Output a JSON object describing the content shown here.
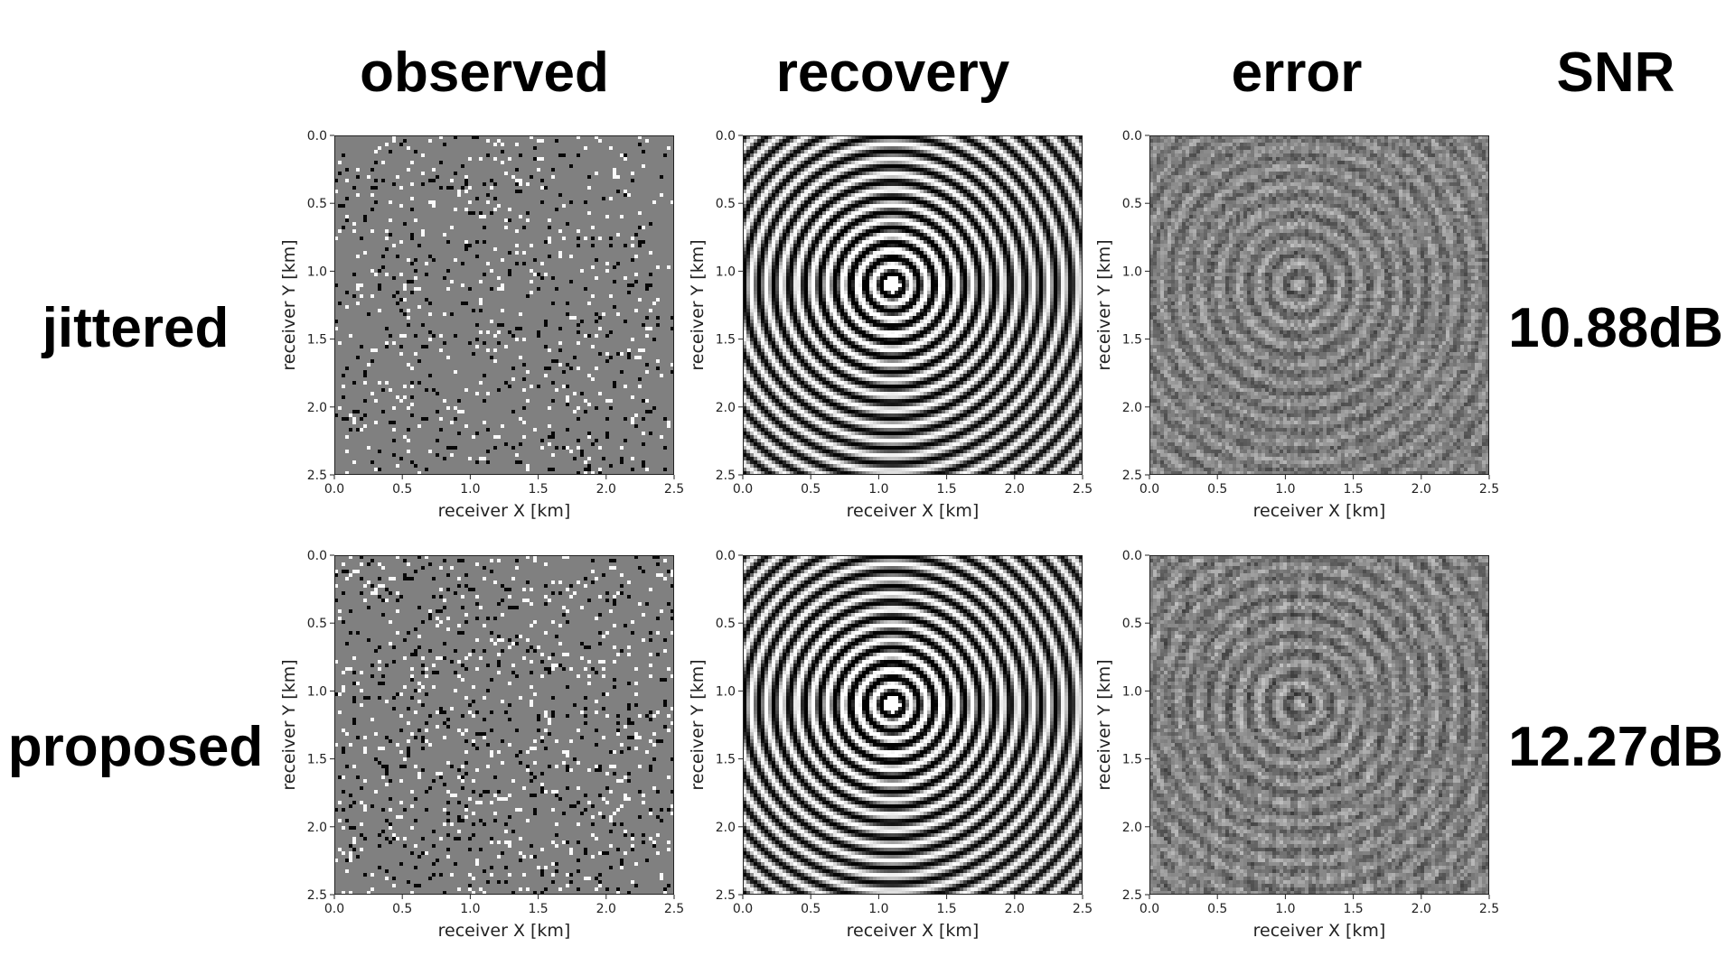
{
  "column_headers": {
    "observed": "observed",
    "recovery": "recovery",
    "error": "error",
    "snr": "SNR"
  },
  "rows": [
    {
      "label": "jittered",
      "snr": "10.88dB"
    },
    {
      "label": "proposed",
      "snr": "12.27dB"
    }
  ],
  "chart_data": [
    {
      "type": "heatmap",
      "row": "jittered",
      "column": "observed",
      "content": "sparsely sampled wavefield (random black/white traces on gray)",
      "xlabel": "receiver X [km]",
      "ylabel": "receiver Y [km]",
      "xlim": [
        0.0,
        2.5
      ],
      "ylim": [
        2.5,
        0.0
      ],
      "xticks": [
        "0.0",
        "0.5",
        "1.0",
        "1.5",
        "2.0",
        "2.5"
      ],
      "yticks": [
        "0.0",
        "0.5",
        "1.0",
        "1.5",
        "2.0",
        "2.5"
      ],
      "colormap": "gray",
      "source_location": [
        1.1,
        1.1
      ]
    },
    {
      "type": "heatmap",
      "row": "jittered",
      "column": "recovery",
      "content": "recovered wavefield (concentric rings)",
      "xlabel": "receiver X [km]",
      "ylabel": "receiver Y [km]",
      "xlim": [
        0.0,
        2.5
      ],
      "ylim": [
        2.5,
        0.0
      ],
      "xticks": [
        "0.0",
        "0.5",
        "1.0",
        "1.5",
        "2.0",
        "2.5"
      ],
      "yticks": [
        "0.0",
        "0.5",
        "1.0",
        "1.5",
        "2.0",
        "2.5"
      ],
      "colormap": "gray",
      "source_location": [
        1.1,
        1.1
      ]
    },
    {
      "type": "heatmap",
      "row": "jittered",
      "column": "error",
      "content": "recovery error (low-amplitude noisy rings)",
      "xlabel": "receiver X [km]",
      "ylabel": "receiver Y [km]",
      "xlim": [
        0.0,
        2.5
      ],
      "ylim": [
        2.5,
        0.0
      ],
      "xticks": [
        "0.0",
        "0.5",
        "1.0",
        "1.5",
        "2.0",
        "2.5"
      ],
      "yticks": [
        "0.0",
        "0.5",
        "1.0",
        "1.5",
        "2.0",
        "2.5"
      ],
      "colormap": "gray",
      "source_location": [
        1.1,
        1.1
      ]
    },
    {
      "type": "heatmap",
      "row": "proposed",
      "column": "observed",
      "content": "sparsely sampled wavefield (random black/white traces on gray)",
      "xlabel": "receiver X [km]",
      "ylabel": "receiver Y [km]",
      "xlim": [
        0.0,
        2.5
      ],
      "ylim": [
        2.5,
        0.0
      ],
      "xticks": [
        "0.0",
        "0.5",
        "1.0",
        "1.5",
        "2.0",
        "2.5"
      ],
      "yticks": [
        "0.0",
        "0.5",
        "1.0",
        "1.5",
        "2.0",
        "2.5"
      ],
      "colormap": "gray",
      "source_location": [
        1.1,
        1.1
      ]
    },
    {
      "type": "heatmap",
      "row": "proposed",
      "column": "recovery",
      "content": "recovered wavefield (concentric rings)",
      "xlabel": "receiver X [km]",
      "ylabel": "receiver Y [km]",
      "xlim": [
        0.0,
        2.5
      ],
      "ylim": [
        2.5,
        0.0
      ],
      "xticks": [
        "0.0",
        "0.5",
        "1.0",
        "1.5",
        "2.0",
        "2.5"
      ],
      "yticks": [
        "0.0",
        "0.5",
        "1.0",
        "1.5",
        "2.0",
        "2.5"
      ],
      "colormap": "gray",
      "source_location": [
        1.1,
        1.1
      ]
    },
    {
      "type": "heatmap",
      "row": "proposed",
      "column": "error",
      "content": "recovery error (low-amplitude noisy rings)",
      "xlabel": "receiver X [km]",
      "ylabel": "receiver Y [km]",
      "xlim": [
        0.0,
        2.5
      ],
      "ylim": [
        2.5,
        0.0
      ],
      "xticks": [
        "0.0",
        "0.5",
        "1.0",
        "1.5",
        "2.0",
        "2.5"
      ],
      "yticks": [
        "0.0",
        "0.5",
        "1.0",
        "1.5",
        "2.0",
        "2.5"
      ],
      "colormap": "gray",
      "source_location": [
        1.1,
        1.1
      ]
    }
  ]
}
